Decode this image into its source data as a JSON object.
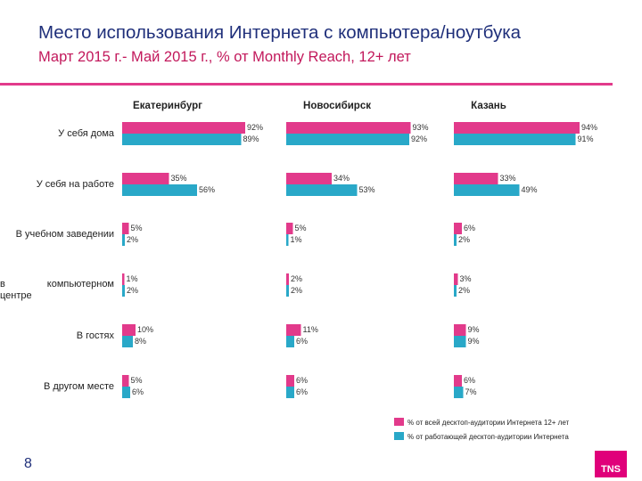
{
  "header": {
    "title": "Место использования Интернета с компьютера/ноутбука",
    "subtitle": "Март 2015 г.- Май 2015 г., % от Monthly Reach, 12+ лет"
  },
  "chart_data": {
    "type": "bar",
    "orientation": "horizontal",
    "title": "Место использования Интернета с компьютера/ноутбука",
    "subtitle": "Март 2015 г.- Май 2015 г., % от Monthly Reach, 12+ лет",
    "categories": [
      "У себя дома",
      "У себя на работе",
      "В учебном заведении",
      "В интернет-кафе или компьютерном центре",
      "В гостях",
      "В другом месте"
    ],
    "category_lines": [
      [
        "У себя дома"
      ],
      [
        "У себя на работе"
      ],
      [
        "В учебном заведении"
      ],
      [
        "в",
        "компьютерном",
        "центре"
      ],
      [
        "В гостях"
      ],
      [
        "В другом месте"
      ]
    ],
    "panels": [
      {
        "city": "Екатеринбург",
        "series": [
          {
            "name": "% от всей десктоп-аудитории Интернета 12+ лет",
            "values": [
              92,
              35,
              5,
              1,
              10,
              5
            ]
          },
          {
            "name": "% от работающей десктоп-аудитории Интернета",
            "values": [
              89,
              56,
              2,
              2,
              8,
              6
            ]
          }
        ]
      },
      {
        "city": "Новосибирск",
        "series": [
          {
            "name": "% от всей десктоп-аудитории Интернета 12+ лет",
            "values": [
              93,
              34,
              5,
              2,
              11,
              6
            ]
          },
          {
            "name": "% от работающей десктоп-аудитории Интернета",
            "values": [
              92,
              53,
              1,
              2,
              6,
              6
            ]
          }
        ]
      },
      {
        "city": "Казань",
        "series": [
          {
            "name": "% от всей десктоп-аудитории Интернета 12+ лет",
            "values": [
              94,
              33,
              6,
              3,
              9,
              6
            ]
          },
          {
            "name": "% от работающей десктоп-аудитории Интернета",
            "values": [
              91,
              49,
              2,
              2,
              9,
              7
            ]
          }
        ]
      }
    ],
    "value_suffix": "%",
    "xlim": [
      0,
      100
    ],
    "colors": {
      "series1": "#e23a8b",
      "series2": "#29a8c8"
    },
    "legend": {
      "position": "bottom-right",
      "items": [
        "% от всей десктоп-аудитории Интернета 12+ лет",
        "% от работающей десктоп-аудитории Интернета"
      ]
    }
  },
  "footer": {
    "page_number": "8",
    "logo_text": "TNS"
  }
}
